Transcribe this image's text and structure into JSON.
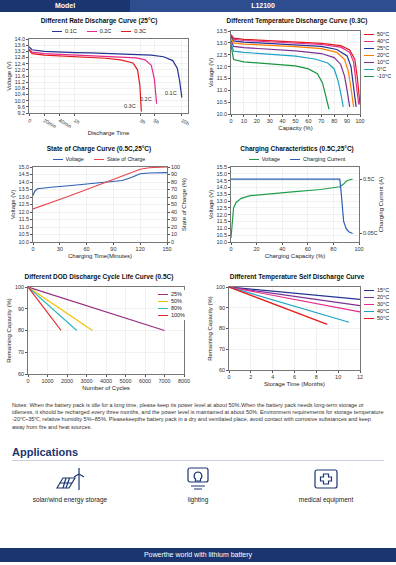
{
  "header": {
    "label": "Model",
    "model": "L12100"
  },
  "chart_data": [
    {
      "type": "line",
      "title": "Different Rate Discharge Curve (25°C)",
      "x_label": "Discharge Time",
      "y_label": "Voltage (V)",
      "xlim": [
        0,
        10.4
      ],
      "xticks": [
        0,
        {
          "value": 1,
          "label": "20min"
        },
        {
          "value": 2,
          "label": "40min"
        },
        {
          "value": 3,
          "label": "1h"
        },
        {
          "value": 7.3,
          "label": "3h"
        },
        {
          "value": 8.2,
          "label": "5h"
        },
        {
          "value": 10,
          "label": "10h"
        }
      ],
      "ylim": [
        9.2,
        14.0
      ],
      "yticks": [
        9.2,
        9.6,
        {
          "value": 10,
          "label": "10.0"
        },
        10.4,
        10.8,
        11.2,
        11.6,
        {
          "value": 12,
          "label": "12.0"
        },
        12.4,
        12.8,
        13.2,
        13.6,
        {
          "value": 14,
          "label": "14.0"
        }
      ],
      "grid": true,
      "legend": "top",
      "annotations": [
        "0.3C",
        "0.2C",
        "0.1C"
      ],
      "series": [
        {
          "name": "0.1C",
          "color": "#253494",
          "x": [
            0,
            0.2,
            1,
            2,
            3,
            4,
            5,
            6,
            7,
            8,
            8.8,
            9.4,
            9.7,
            9.85,
            10.0
          ],
          "values": [
            13.5,
            13.3,
            13.2,
            13.15,
            13.12,
            13.1,
            13.07,
            13.04,
            13.0,
            12.95,
            12.85,
            12.6,
            12.1,
            11.3,
            10.2
          ]
        },
        {
          "name": "0.2C",
          "color": "#e7298a",
          "x": [
            0,
            0.2,
            1,
            2,
            3,
            4,
            5,
            6,
            7,
            7.6,
            8.0,
            8.2,
            8.35
          ],
          "values": [
            13.35,
            13.15,
            13.05,
            13.0,
            12.95,
            12.92,
            12.88,
            12.84,
            12.78,
            12.65,
            12.3,
            11.4,
            9.8
          ]
        },
        {
          "name": "0.3C",
          "color": "#e31a1c",
          "x": [
            0,
            0.2,
            1,
            2,
            3,
            4,
            5,
            6,
            6.8,
            7.1,
            7.25,
            7.35
          ],
          "values": [
            13.3,
            13.05,
            12.95,
            12.9,
            12.85,
            12.8,
            12.75,
            12.65,
            12.45,
            12.0,
            11.0,
            9.3
          ]
        }
      ]
    },
    {
      "type": "line",
      "title": "Different Temperature Discharge Curve (0.3C)",
      "x_label": "Capacity (%)",
      "y_label": "Voltage (V)",
      "xlim": [
        0,
        100
      ],
      "xticks": [
        0,
        10,
        20,
        30,
        40,
        50,
        60,
        70,
        80,
        90,
        100
      ],
      "ylim": [
        10,
        13.5
      ],
      "yticks": [
        {
          "value": 10,
          "label": "10.0"
        },
        10.5,
        {
          "value": 11,
          "label": "11.0"
        },
        11.5,
        {
          "value": 12,
          "label": "12.0"
        },
        12.5,
        {
          "value": 13,
          "label": "13.0"
        },
        13.5
      ],
      "grid": true,
      "legend": "right",
      "series": [
        {
          "name": "50°C",
          "color": "#e31a1c",
          "x": [
            0,
            2,
            10,
            30,
            50,
            70,
            85,
            92,
            96,
            98,
            100
          ],
          "values": [
            13.35,
            13.2,
            13.15,
            13.1,
            13.05,
            12.98,
            12.88,
            12.7,
            12.3,
            11.5,
            10.4
          ]
        },
        {
          "name": "40°C",
          "color": "#e7298a",
          "x": [
            0,
            2,
            10,
            30,
            50,
            70,
            85,
            92,
            95,
            97,
            99
          ],
          "values": [
            13.3,
            13.15,
            13.1,
            13.05,
            13.0,
            12.93,
            12.82,
            12.6,
            12.2,
            11.4,
            10.4
          ]
        },
        {
          "name": "25°C",
          "color": "#253494",
          "x": [
            0,
            2,
            10,
            30,
            50,
            70,
            82,
            90,
            93,
            95,
            97
          ],
          "values": [
            13.25,
            13.08,
            13.03,
            12.98,
            12.93,
            12.85,
            12.72,
            12.45,
            12.0,
            11.2,
            10.3
          ]
        },
        {
          "name": "20°C",
          "color": "#ff7f00",
          "x": [
            0,
            2,
            10,
            30,
            50,
            70,
            82,
            88,
            91,
            93,
            95
          ],
          "values": [
            13.2,
            13.0,
            12.95,
            12.9,
            12.84,
            12.76,
            12.6,
            12.3,
            11.8,
            11.1,
            10.3
          ]
        },
        {
          "name": "10°C",
          "color": "#7b3294",
          "x": [
            0,
            2,
            10,
            30,
            50,
            70,
            80,
            85,
            88,
            90,
            92
          ],
          "values": [
            13.1,
            12.85,
            12.8,
            12.73,
            12.66,
            12.55,
            12.38,
            12.1,
            11.6,
            11.0,
            10.3
          ]
        },
        {
          "name": "0°C",
          "color": "#1ba3c6",
          "x": [
            0,
            2,
            10,
            30,
            50,
            65,
            75,
            80,
            83,
            85,
            87
          ],
          "values": [
            13.0,
            12.65,
            12.6,
            12.52,
            12.44,
            12.32,
            12.15,
            11.9,
            11.4,
            10.9,
            10.3
          ]
        },
        {
          "name": "-10°C",
          "color": "#1a9641",
          "x": [
            0,
            2,
            10,
            30,
            50,
            60,
            67,
            71,
            73,
            75,
            76
          ],
          "values": [
            12.9,
            12.3,
            12.2,
            12.12,
            12.03,
            11.9,
            11.7,
            11.3,
            10.9,
            10.5,
            10.2
          ]
        }
      ]
    },
    {
      "type": "line",
      "title": "State of Charge Curve (0.5C,25°C)",
      "x_label": "Charging Time(Minutes)",
      "y_label": "Voltage (V)",
      "y2_label": "State of Charge (%)",
      "xlim": [
        0,
        150
      ],
      "xticks": [
        0,
        30,
        60,
        90,
        120,
        150
      ],
      "ylim": [
        10,
        15
      ],
      "yticks": [
        {
          "value": 10,
          "label": "10.0"
        },
        10.5,
        {
          "value": 11,
          "label": "11.0"
        },
        11.5,
        {
          "value": 12,
          "label": "12.0"
        },
        12.5,
        {
          "value": 13,
          "label": "13.0"
        },
        13.5,
        {
          "value": 14,
          "label": "14.0"
        },
        14.5,
        {
          "value": 15,
          "label": "15.0"
        }
      ],
      "y2lim": [
        0,
        100
      ],
      "y2ticks": [
        0,
        10,
        20,
        30,
        40,
        50,
        60,
        70,
        80,
        90,
        100
      ],
      "grid": true,
      "legend": "top",
      "series": [
        {
          "name": "Voltage",
          "color": "#2b5fb4",
          "x": [
            0,
            2,
            5,
            10,
            20,
            40,
            60,
            80,
            100,
            110,
            115,
            120,
            130,
            150
          ],
          "values": [
            13.1,
            13.4,
            13.55,
            13.6,
            13.65,
            13.75,
            13.85,
            13.95,
            14.1,
            14.3,
            14.45,
            14.55,
            14.6,
            14.62
          ]
        },
        {
          "name": "State of Charge",
          "color": "#e8454f",
          "axis": "y2",
          "x": [
            0,
            20,
            40,
            60,
            80,
            100,
            110,
            120,
            130,
            150
          ],
          "values": [
            44,
            52,
            61,
            70,
            79,
            88,
            93,
            97,
            99,
            100
          ]
        }
      ]
    },
    {
      "type": "line",
      "title": "Charging Characteristics (0.5C,25°C)",
      "x_label": "Charging Capacity (%)",
      "y_label": "Voltage (V)",
      "y2_label": "Charging Current (A)",
      "xlim": [
        0,
        100
      ],
      "xticks": [
        0,
        20,
        40,
        60,
        80,
        100
      ],
      "ylim": [
        10,
        15.5
      ],
      "yticks": [
        {
          "value": 10,
          "label": "10.0"
        },
        10.5,
        {
          "value": 11,
          "label": "11.0"
        },
        11.5,
        {
          "value": 12,
          "label": "12.0"
        },
        12.5,
        {
          "value": 13,
          "label": "13.0"
        },
        13.5,
        {
          "value": 14,
          "label": "14.0"
        },
        14.5,
        {
          "value": 15,
          "label": "15.0"
        },
        15.5
      ],
      "y2lim": [
        -0.02,
        0.6
      ],
      "y2ticks": [
        {
          "value": 0.05,
          "label": "0.05C"
        },
        {
          "value": 0.5,
          "label": "0.5C"
        }
      ],
      "grid": true,
      "legend": "top",
      "series": [
        {
          "name": "Voltage",
          "color": "#1f9e4a",
          "x": [
            0,
            1,
            2,
            4,
            8,
            15,
            30,
            50,
            70,
            80,
            85,
            88,
            90,
            92,
            95
          ],
          "values": [
            10.3,
            11.5,
            12.5,
            12.9,
            13.2,
            13.4,
            13.55,
            13.7,
            13.85,
            13.95,
            14.05,
            14.25,
            14.45,
            14.55,
            14.6
          ]
        },
        {
          "name": "Charging Current",
          "color": "#2b5fb4",
          "axis": "y2",
          "x": [
            0,
            20,
            40,
            60,
            80,
            85,
            86,
            87,
            88,
            90,
            92,
            95
          ],
          "values": [
            0.5,
            0.5,
            0.5,
            0.5,
            0.5,
            0.5,
            0.4,
            0.25,
            0.15,
            0.09,
            0.065,
            0.05
          ]
        }
      ]
    },
    {
      "type": "line",
      "title": "Different DOD Discharge Cycle Life Curve (0.5C)",
      "x_label": "Number of Cycles",
      "y_label": "Remaining Capacity (%)",
      "xlim": [
        0,
        8000
      ],
      "xticks": [
        0,
        1000,
        2000,
        3000,
        4000,
        5000,
        6000,
        7000,
        8000
      ],
      "ylim": [
        60,
        100
      ],
      "yticks": [
        60,
        70,
        80,
        90,
        100
      ],
      "grid": true,
      "legend": "top right",
      "series": [
        {
          "name": "25%",
          "color": "#9b2d7f",
          "x": [
            0,
            7000
          ],
          "values": [
            100,
            80
          ]
        },
        {
          "name": "50%",
          "color": "#f2c200",
          "x": [
            0,
            3300
          ],
          "values": [
            100,
            80
          ]
        },
        {
          "name": "80%",
          "color": "#2ab7c5",
          "x": [
            0,
            2500
          ],
          "values": [
            100,
            80
          ]
        },
        {
          "name": "100%",
          "color": "#e4262a",
          "x": [
            0,
            1700
          ],
          "values": [
            100,
            80
          ]
        }
      ]
    },
    {
      "type": "line",
      "title": "Different Temperature Self Discharge Curve",
      "x_label": "Storage Time (Months)",
      "y_label": "Remaining Capacity (%)",
      "xlim": [
        0,
        12
      ],
      "xticks": [
        0,
        2,
        4,
        6,
        8,
        10,
        12
      ],
      "ylim": [
        60,
        100
      ],
      "yticks": [
        60,
        70,
        80,
        90,
        100
      ],
      "grid": true,
      "legend": "right",
      "series": [
        {
          "name": "15°C",
          "color": "#253494",
          "x": [
            0,
            12
          ],
          "values": [
            100,
            94
          ]
        },
        {
          "name": "20°C",
          "color": "#7b3294",
          "x": [
            0,
            12
          ],
          "values": [
            100,
            91
          ]
        },
        {
          "name": "30°C",
          "color": "#e7298a",
          "x": [
            0,
            12
          ],
          "values": [
            100,
            88
          ]
        },
        {
          "name": "40°C",
          "color": "#1ba3c6",
          "x": [
            0,
            11
          ],
          "values": [
            100,
            83
          ]
        },
        {
          "name": "50°C",
          "color": "#e31a1c",
          "x": [
            0,
            9
          ],
          "values": [
            100,
            82
          ]
        }
      ]
    }
  ],
  "notes": "Notes: When the battery pack is idle for a long time, please keep its power level at about 50%.When the battery pack needs long-term storage or idleness, it should be recharged every three months, and the power level is maintained at about 50%. Environment requirements for storage temperature -20℃~35℃, relative humidity 5%~85%. Pleasekeepthe battery pack in a dry and ventilated place, avoid contact with corrosive substances and keep away from fire and heat sources.",
  "applications": {
    "title": "Applications",
    "items": [
      "solar/wind energy storage",
      "lighting",
      "medical equipment"
    ]
  },
  "footer": "Powerthe world with lithium battery"
}
